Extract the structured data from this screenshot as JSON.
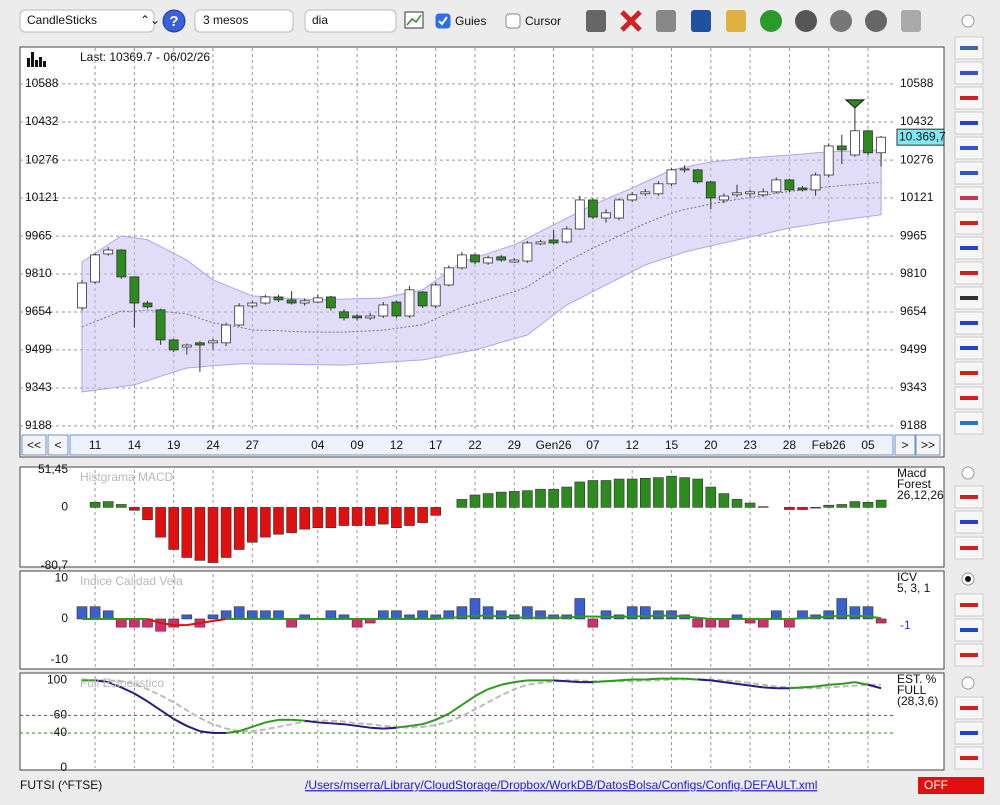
{
  "toolbar": {
    "chart_type": "CandleSticks",
    "period": "3 mesos",
    "interval": "dia",
    "guides": "Guies",
    "guides_on": true,
    "cursor": "Cursor",
    "cursor_on": false
  },
  "nav": {
    "first": "<<",
    "prev": "<",
    "next": ">",
    "last": ">>"
  },
  "footer": {
    "symbol": "FUTSI (^FTSE)",
    "config_path": "/Users/mserra/Library/CloudStorage/Dropbox/WorkDB/DatosBolsa/Configs/Config.DEFAULT.xml",
    "status": "OFF"
  },
  "chart_data": [
    {
      "type": "candlestick",
      "title": "Last: 10369.7 - 06/02/26",
      "last_label": "10.369,7",
      "categories": [
        null,
        "11",
        null,
        null,
        "14",
        null,
        null,
        "19",
        null,
        null,
        "24",
        null,
        null,
        "27",
        null,
        null,
        null,
        null,
        "04",
        null,
        null,
        "09",
        null,
        null,
        "12",
        null,
        null,
        "17",
        null,
        null,
        "22",
        null,
        null,
        "29",
        null,
        null,
        "Gen26",
        null,
        null,
        "07",
        null,
        null,
        "12",
        null,
        null,
        "15",
        null,
        null,
        "20",
        null,
        null,
        "23",
        null,
        null,
        "28",
        null,
        null,
        "Feb26",
        null,
        null,
        "05",
        null
      ],
      "open": [
        9671,
        9777,
        9892,
        9908,
        9798,
        9691,
        9663,
        9540,
        9511,
        9528,
        9528,
        9528,
        9601,
        9679,
        9691,
        9716,
        9704,
        9691,
        9695,
        9716,
        9655,
        9638,
        9630,
        9638,
        9695,
        9638,
        9736,
        9679,
        9765,
        9835,
        9888,
        9855,
        9880,
        9859,
        9863,
        9933,
        9949,
        9941,
        9994,
        10113,
        10039,
        10039,
        10113,
        10138,
        10138,
        10179,
        10236,
        10236,
        10187,
        10113,
        10134,
        10138,
        10134,
        10146,
        10195,
        10162,
        10154,
        10215,
        10334,
        10297,
        10396,
        10306
      ],
      "high": [
        9785,
        9895,
        9920,
        9912,
        9800,
        9700,
        9668,
        9545,
        9525,
        9535,
        9545,
        9610,
        9690,
        9700,
        9725,
        9725,
        9740,
        9710,
        9725,
        9720,
        9665,
        9645,
        9650,
        9695,
        9700,
        9760,
        9740,
        9775,
        9845,
        9900,
        9895,
        9885,
        9888,
        9875,
        9945,
        9950,
        9990,
        10005,
        10130,
        10120,
        10075,
        10120,
        10145,
        10158,
        10190,
        10245,
        10255,
        10240,
        10190,
        10140,
        10175,
        10155,
        10160,
        10205,
        10200,
        10170,
        10225,
        10345,
        10380,
        10490,
        10400,
        10375
      ],
      "low": [
        9660,
        9770,
        9885,
        9790,
        9590,
        9668,
        9520,
        9490,
        9480,
        9409,
        9500,
        9515,
        9595,
        9670,
        9685,
        9695,
        9685,
        9680,
        9690,
        9660,
        9620,
        9620,
        9622,
        9630,
        9630,
        9630,
        9670,
        9670,
        9760,
        9828,
        9850,
        9848,
        9860,
        9855,
        9855,
        9928,
        9930,
        9935,
        9990,
        10035,
        10020,
        10030,
        10105,
        10130,
        10130,
        10170,
        10225,
        10180,
        10075,
        10100,
        10125,
        10125,
        10125,
        10140,
        10145,
        10148,
        10130,
        10205,
        10260,
        10290,
        10295,
        10250
      ],
      "close": [
        9773,
        9888,
        9908,
        9798,
        9691,
        9675,
        9540,
        9499,
        9519,
        9519,
        9536,
        9601,
        9679,
        9691,
        9716,
        9704,
        9691,
        9700,
        9712,
        9671,
        9630,
        9630,
        9638,
        9683,
        9638,
        9745,
        9679,
        9765,
        9835,
        9888,
        9859,
        9876,
        9867,
        9867,
        9937,
        9941,
        9937,
        9994,
        10113,
        10043,
        10060,
        10113,
        10134,
        10146,
        10179,
        10236,
        10240,
        10187,
        10121,
        10129,
        10142,
        10146,
        10146,
        10195,
        10154,
        10154,
        10215,
        10334,
        10318,
        10396,
        10306,
        10370
      ],
      "bands": {
        "upper": [
          9859,
          9895,
          9930,
          9966,
          9958,
          9950,
          9922,
          9895,
          9867,
          9826,
          9786,
          9764,
          9742,
          9720,
          9717,
          9714,
          9710,
          9707,
          9704,
          9706,
          9707,
          9709,
          9710,
          9712,
          9723,
          9734,
          9745,
          9783,
          9821,
          9859,
          9877,
          9894,
          9912,
          9929,
          9956,
          9984,
          10011,
          10038,
          10066,
          10093,
          10116,
          10139,
          10162,
          10187,
          10211,
          10236,
          10247,
          10258,
          10269,
          10274,
          10280,
          10285,
          10289,
          10293,
          10297,
          10301,
          10306,
          10310,
          10312,
          10314,
          10316,
          10318
        ],
        "lower": [
          9327,
          9334,
          9341,
          9349,
          9356,
          9373,
          9391,
          9408,
          9425,
          9429,
          9434,
          9438,
          9442,
          9442,
          9441,
          9441,
          9440,
          9439,
          9439,
          9438,
          9437,
          9441,
          9444,
          9448,
          9451,
          9455,
          9458,
          9468,
          9479,
          9489,
          9499,
          9514,
          9530,
          9545,
          9560,
          9601,
          9642,
          9683,
          9710,
          9738,
          9765,
          9792,
          9820,
          9847,
          9865,
          9882,
          9900,
          9912,
          9925,
          9937,
          9949,
          9961,
          9973,
          9986,
          9998,
          10006,
          10015,
          10023,
          10031,
          10038,
          10045,
          10052
        ],
        "ma": [
          9593,
          9615,
          9636,
          9658,
          9657,
          9662,
          9657,
          9652,
          9646,
          9628,
          9610,
          9601,
          9592,
          9581,
          9579,
          9578,
          9575,
          9573,
          9572,
          9572,
          9572,
          9575,
          9577,
          9580,
          9587,
          9595,
          9602,
          9626,
          9650,
          9674,
          9688,
          9704,
          9721,
          9737,
          9758,
          9793,
          9827,
          9861,
          9888,
          9916,
          9941,
          9966,
          9991,
          10017,
          10038,
          10059,
          10074,
          10085,
          10097,
          10106,
          10115,
          10123,
          10131,
          10140,
          10148,
          10154,
          10161,
          10167,
          10172,
          10176,
          10181,
          10185
        ],
        "color": "#c9c0f0",
        "ma_color": "#777777"
      },
      "up_color": "#ffffff",
      "down_color": "#2d8a1e",
      "marker_color": "#2d8a1e",
      "ylim": [
        9163,
        10735
      ],
      "yticks": [
        10588,
        10432,
        10276,
        10121,
        9965,
        9810,
        9654,
        9499,
        9343,
        9188
      ],
      "grid": true
    },
    {
      "type": "bar",
      "title": "Histgrama MACD",
      "label_lines": [
        "Macd",
        "Forest",
        "26,12,26"
      ],
      "values": [
        null,
        7,
        8,
        4,
        -4,
        -17,
        -41,
        -58,
        -69,
        -73,
        -76,
        -69,
        -58,
        -48,
        -41,
        -37,
        -35,
        -30,
        -28,
        -28,
        -25,
        -25,
        -25,
        -23,
        -28,
        -25,
        -21,
        -11,
        0,
        11,
        17,
        19,
        21,
        22,
        23,
        25,
        25,
        28,
        35,
        37,
        37,
        39,
        39,
        40,
        41,
        43,
        41,
        39,
        28,
        19,
        11,
        6,
        1,
        0,
        -3,
        -3,
        -1,
        3,
        4,
        8,
        7,
        10
      ],
      "pos_color": "#2d8a1e",
      "neg_color": "#e01010",
      "ylim": [
        -80.7,
        51.45
      ],
      "yticks": [
        {
          "value": 51.45,
          "label": "51,45"
        },
        0,
        {
          "value": -80.7,
          "label": "-80,7"
        }
      ]
    },
    {
      "type": "bar_line",
      "title": "Indice Calidad Vela",
      "label_lines": [
        "ICV",
        "5, 3, 1"
      ],
      "values": [
        3,
        3,
        2,
        -2,
        -2,
        -2,
        -3,
        -2,
        1,
        -2,
        1,
        2,
        3,
        2,
        2,
        2,
        -2,
        1,
        0,
        2,
        1,
        -2,
        -1,
        2,
        2,
        1,
        2,
        1,
        2,
        3,
        5,
        3,
        2,
        1,
        3,
        2,
        1,
        1,
        5,
        -2,
        2,
        1,
        3,
        3,
        2,
        2,
        1,
        -2,
        -2,
        -2,
        1,
        -1,
        -2,
        2,
        -2,
        2,
        1,
        2,
        5,
        3,
        3,
        -1
      ],
      "line": [
        0,
        0,
        0,
        0,
        0,
        0,
        -1,
        -1.5,
        -1.5,
        -1,
        -0.5,
        0,
        0,
        0,
        0,
        0,
        0,
        0,
        0,
        0,
        0,
        0,
        0,
        0,
        0,
        0,
        0,
        0,
        0.2,
        0.5,
        0.8,
        0.8,
        0.6,
        0.4,
        0.3,
        0.3,
        0.3,
        0.3,
        0.6,
        0.6,
        0.5,
        0.5,
        0.6,
        0.7,
        0.8,
        0.8,
        0.6,
        0.3,
        0,
        0,
        0,
        0,
        0,
        0,
        0,
        0.2,
        0.3,
        0.6,
        0.8,
        0.8,
        0.6,
        0.2
      ],
      "pos_color": "#3a5fd0",
      "neg_color": "#d0306a",
      "line_color": "#2d9a1e",
      "line_neg_color": "#e01010",
      "value_label_color": "#2244cc",
      "ylim": [
        -12,
        11
      ],
      "yticks": [
        10,
        0,
        -10
      ]
    },
    {
      "type": "line",
      "title": "Full Estocastico",
      "label_lines": [
        "EST. %",
        "FULL",
        "(28,3,6)"
      ],
      "series": [
        {
          "values": [
            100,
            100,
            98,
            92,
            85,
            76,
            66,
            56,
            48,
            42,
            40,
            40,
            42,
            47,
            52,
            55,
            55,
            54,
            52,
            51,
            50,
            48,
            46,
            45,
            46,
            48,
            50,
            55,
            62,
            72,
            82,
            90,
            95,
            98,
            100,
            100,
            100,
            99,
            98,
            98,
            99,
            100,
            101,
            101,
            102,
            102,
            102,
            101,
            100,
            98,
            96,
            94,
            92,
            91,
            91,
            92,
            93,
            95,
            96,
            98,
            95,
            91
          ],
          "color": "#2d9a1e",
          "alt_color": "#2a1a80"
        },
        {
          "values": [
            100,
            100,
            100,
            99,
            96,
            90,
            83,
            75,
            66,
            57,
            50,
            45,
            42,
            42,
            44,
            47,
            50,
            53,
            54,
            54,
            53,
            51,
            50,
            48,
            47,
            46,
            47,
            49,
            53,
            59,
            67,
            75,
            83,
            90,
            95,
            97,
            99,
            100,
            100,
            99,
            99,
            99,
            99,
            100,
            100,
            101,
            101,
            101,
            101,
            100,
            99,
            97,
            95,
            93,
            92,
            91,
            91,
            92,
            93,
            94,
            95,
            95
          ],
          "color": "#bbbbbb",
          "dashed": true
        }
      ],
      "ylim": [
        0,
        105
      ],
      "yticks": [
        100,
        60,
        40,
        0
      ],
      "grid_colors": [
        null,
        "#b03030",
        "#2d8a1e",
        null
      ]
    }
  ]
}
